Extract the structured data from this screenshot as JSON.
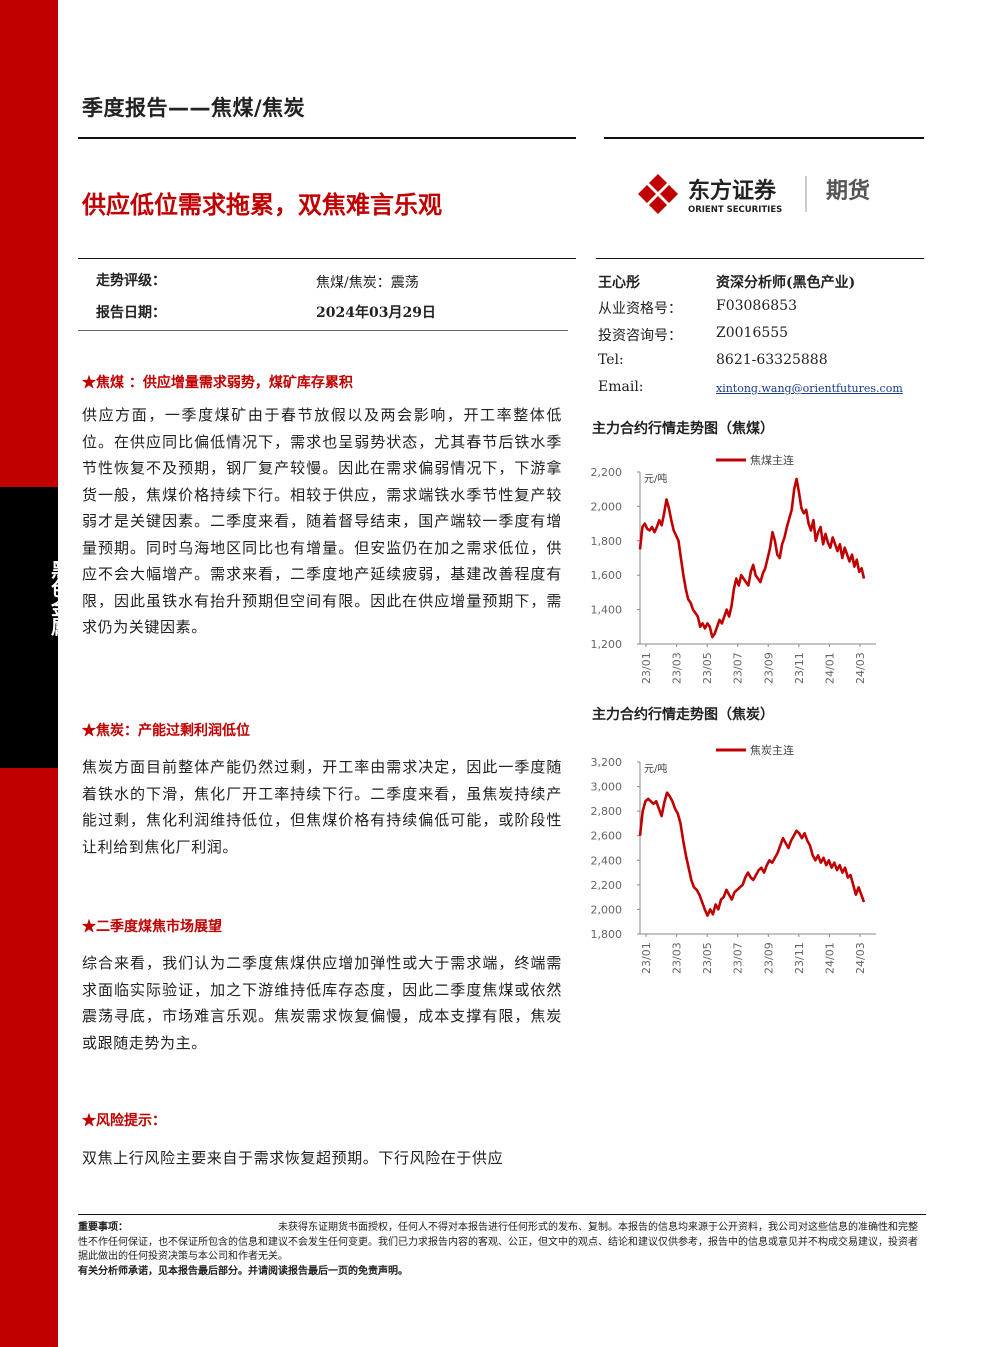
{
  "side_label": "黑色金属",
  "report_type": "季度报告——焦煤/焦炭",
  "title": "供应低位需求拖累，双焦难言乐观",
  "brand": {
    "name_cn": "东方证券",
    "name_en": "ORIENT SECURITIES",
    "sub": "期货",
    "color": "#c00000"
  },
  "rating": {
    "label": "走势评级：",
    "value": "焦煤/焦炭：震荡"
  },
  "date": {
    "label": "报告日期：",
    "value": "2024年03月29日"
  },
  "analyst": {
    "name": "王心彤",
    "title": "资深分析师(黑色产业)",
    "rows": [
      {
        "label": "从业资格号：",
        "value": "F03086853"
      },
      {
        "label": "投资咨询号：",
        "value": "Z0016555"
      },
      {
        "label": "Tel:",
        "value": "8621-63325888"
      },
      {
        "label": "Email:",
        "value": "xintong.wang@orientfutures.com"
      }
    ]
  },
  "sections": [
    {
      "heading": "★焦煤 ：供应增量需求弱势，煤矿库存累积",
      "body": "供应方面，一季度煤矿由于春节放假以及两会影响，开工率整体低位。在供应同比偏低情况下，需求也呈弱势状态，尤其春节后铁水季节性恢复不及预期，钢厂复产较慢。因此在需求偏弱情况下，下游拿货一般，焦煤价格持续下行。相较于供应，需求端铁水季节性复产较弱才是关键因素。二季度来看，随着督导结束，国产端较一季度有增量预期。同时乌海地区同比也有增量。但安监仍在加之需求低位，供应不会大幅增产。需求来看，二季度地产延续疲弱，基建改善程度有限，因此虽铁水有抬升预期但空间有限。因此在供应增量预期下，需求仍为关键因素。"
    },
    {
      "heading": "★焦炭：产能过剩利润低位",
      "body": "焦炭方面目前整体产能仍然过剩，开工率由需求决定，因此一季度随着铁水的下滑，焦化厂开工率持续下行。二季度来看，虽焦炭持续产能过剩，焦化利润维持低位，但焦煤价格有持续偏低可能，或阶段性让利给到焦化厂利润。"
    },
    {
      "heading": "★二季度煤焦市场展望",
      "body": "综合来看，我们认为二季度焦煤供应增加弹性或大于需求端，终端需求面临实际验证，加之下游维持低库存态度，因此二季度焦煤或依然震荡寻底，市场难言乐观。焦炭需求恢复偏慢，成本支撑有限，焦炭或跟随走势为主。"
    },
    {
      "heading": "★风险提示：",
      "body": "双焦上行风险主要来自于需求恢复超预期。下行风险在于供应"
    }
  ],
  "chart_data": [
    {
      "type": "line",
      "title": "主力合约行情走势图（焦煤）",
      "unit": "元/吨",
      "legend": "焦煤主连",
      "x_ticks": [
        "23/01",
        "23/03",
        "23/05",
        "23/07",
        "23/09",
        "23/11",
        "24/01",
        "24/03"
      ],
      "y_ticks": [
        "2,200",
        "2,000",
        "1,800",
        "1,600",
        "1,400",
        "1,200"
      ],
      "ylim": [
        1200,
        2200
      ],
      "color": "#c00000",
      "series": [
        {
          "values": [
            1750,
            1880,
            1900,
            1870,
            1860,
            1880,
            1850,
            1880,
            1920,
            1890,
            1960,
            2040,
            1990,
            1920,
            1860,
            1830,
            1800,
            1700,
            1600,
            1520,
            1460,
            1440,
            1400,
            1380,
            1360,
            1300,
            1320,
            1290,
            1320,
            1300,
            1240,
            1260,
            1300,
            1340,
            1320,
            1360,
            1400,
            1360,
            1420,
            1520,
            1580,
            1540,
            1600,
            1580,
            1560,
            1540,
            1620,
            1660,
            1600,
            1580,
            1560,
            1610,
            1640,
            1700,
            1760,
            1850,
            1800,
            1720,
            1700,
            1780,
            1820,
            1880,
            1930,
            1980,
            2100,
            2160,
            2080,
            1990,
            1960,
            1980,
            1900,
            1860,
            1920,
            1800,
            1850,
            1880,
            1780,
            1840,
            1790,
            1760,
            1820,
            1780,
            1740,
            1780,
            1700,
            1760,
            1720,
            1680,
            1720,
            1650,
            1690,
            1620,
            1640,
            1580
          ]
        }
      ]
    },
    {
      "type": "line",
      "title": "主力合约行情走势图（焦炭）",
      "unit": "元/吨",
      "legend": "焦炭主连",
      "x_ticks": [
        "23/01",
        "23/03",
        "23/05",
        "23/07",
        "23/09",
        "23/11",
        "24/01",
        "24/03"
      ],
      "y_ticks": [
        "3,200",
        "3,000",
        "2,800",
        "2,600",
        "2,400",
        "2,200",
        "2,000",
        "1,800"
      ],
      "ylim": [
        1800,
        3200
      ],
      "color": "#c00000",
      "series": [
        {
          "values": [
            2600,
            2800,
            2880,
            2900,
            2880,
            2860,
            2880,
            2820,
            2760,
            2870,
            2950,
            2920,
            2880,
            2820,
            2780,
            2700,
            2560,
            2440,
            2340,
            2240,
            2180,
            2160,
            2120,
            2060,
            2000,
            1950,
            2000,
            1960,
            2040,
            2000,
            2080,
            2100,
            2160,
            2120,
            2080,
            2140,
            2160,
            2180,
            2200,
            2260,
            2300,
            2260,
            2240,
            2280,
            2320,
            2340,
            2300,
            2360,
            2400,
            2380,
            2420,
            2460,
            2520,
            2580,
            2540,
            2500,
            2560,
            2600,
            2640,
            2620,
            2580,
            2620,
            2560,
            2520,
            2440,
            2400,
            2440,
            2380,
            2420,
            2360,
            2400,
            2340,
            2380,
            2320,
            2360,
            2300,
            2340,
            2260,
            2280,
            2200,
            2120,
            2180,
            2120,
            2060
          ]
        }
      ]
    }
  ],
  "footer": {
    "label": "重要事项：",
    "text": "未获得东证期货书面授权，任何人不得对本报告进行任何形式的发布、复制。本报告的信息均来源于公开资料，我公司对这些信息的准确性和完整性不作任何保证，也不保证所包含的信息和建议不会发生任何变更。我们已力求报告内容的客观、公正，但文中的观点、结论和建议仅供参考，报告中的信息或意见并不构成交易建议，投资者据此做出的任何投资决策与本公司和作者无关。",
    "note": "有关分析师承诺，见本报告最后部分。并请阅读报告最后一页的免责声明。"
  }
}
